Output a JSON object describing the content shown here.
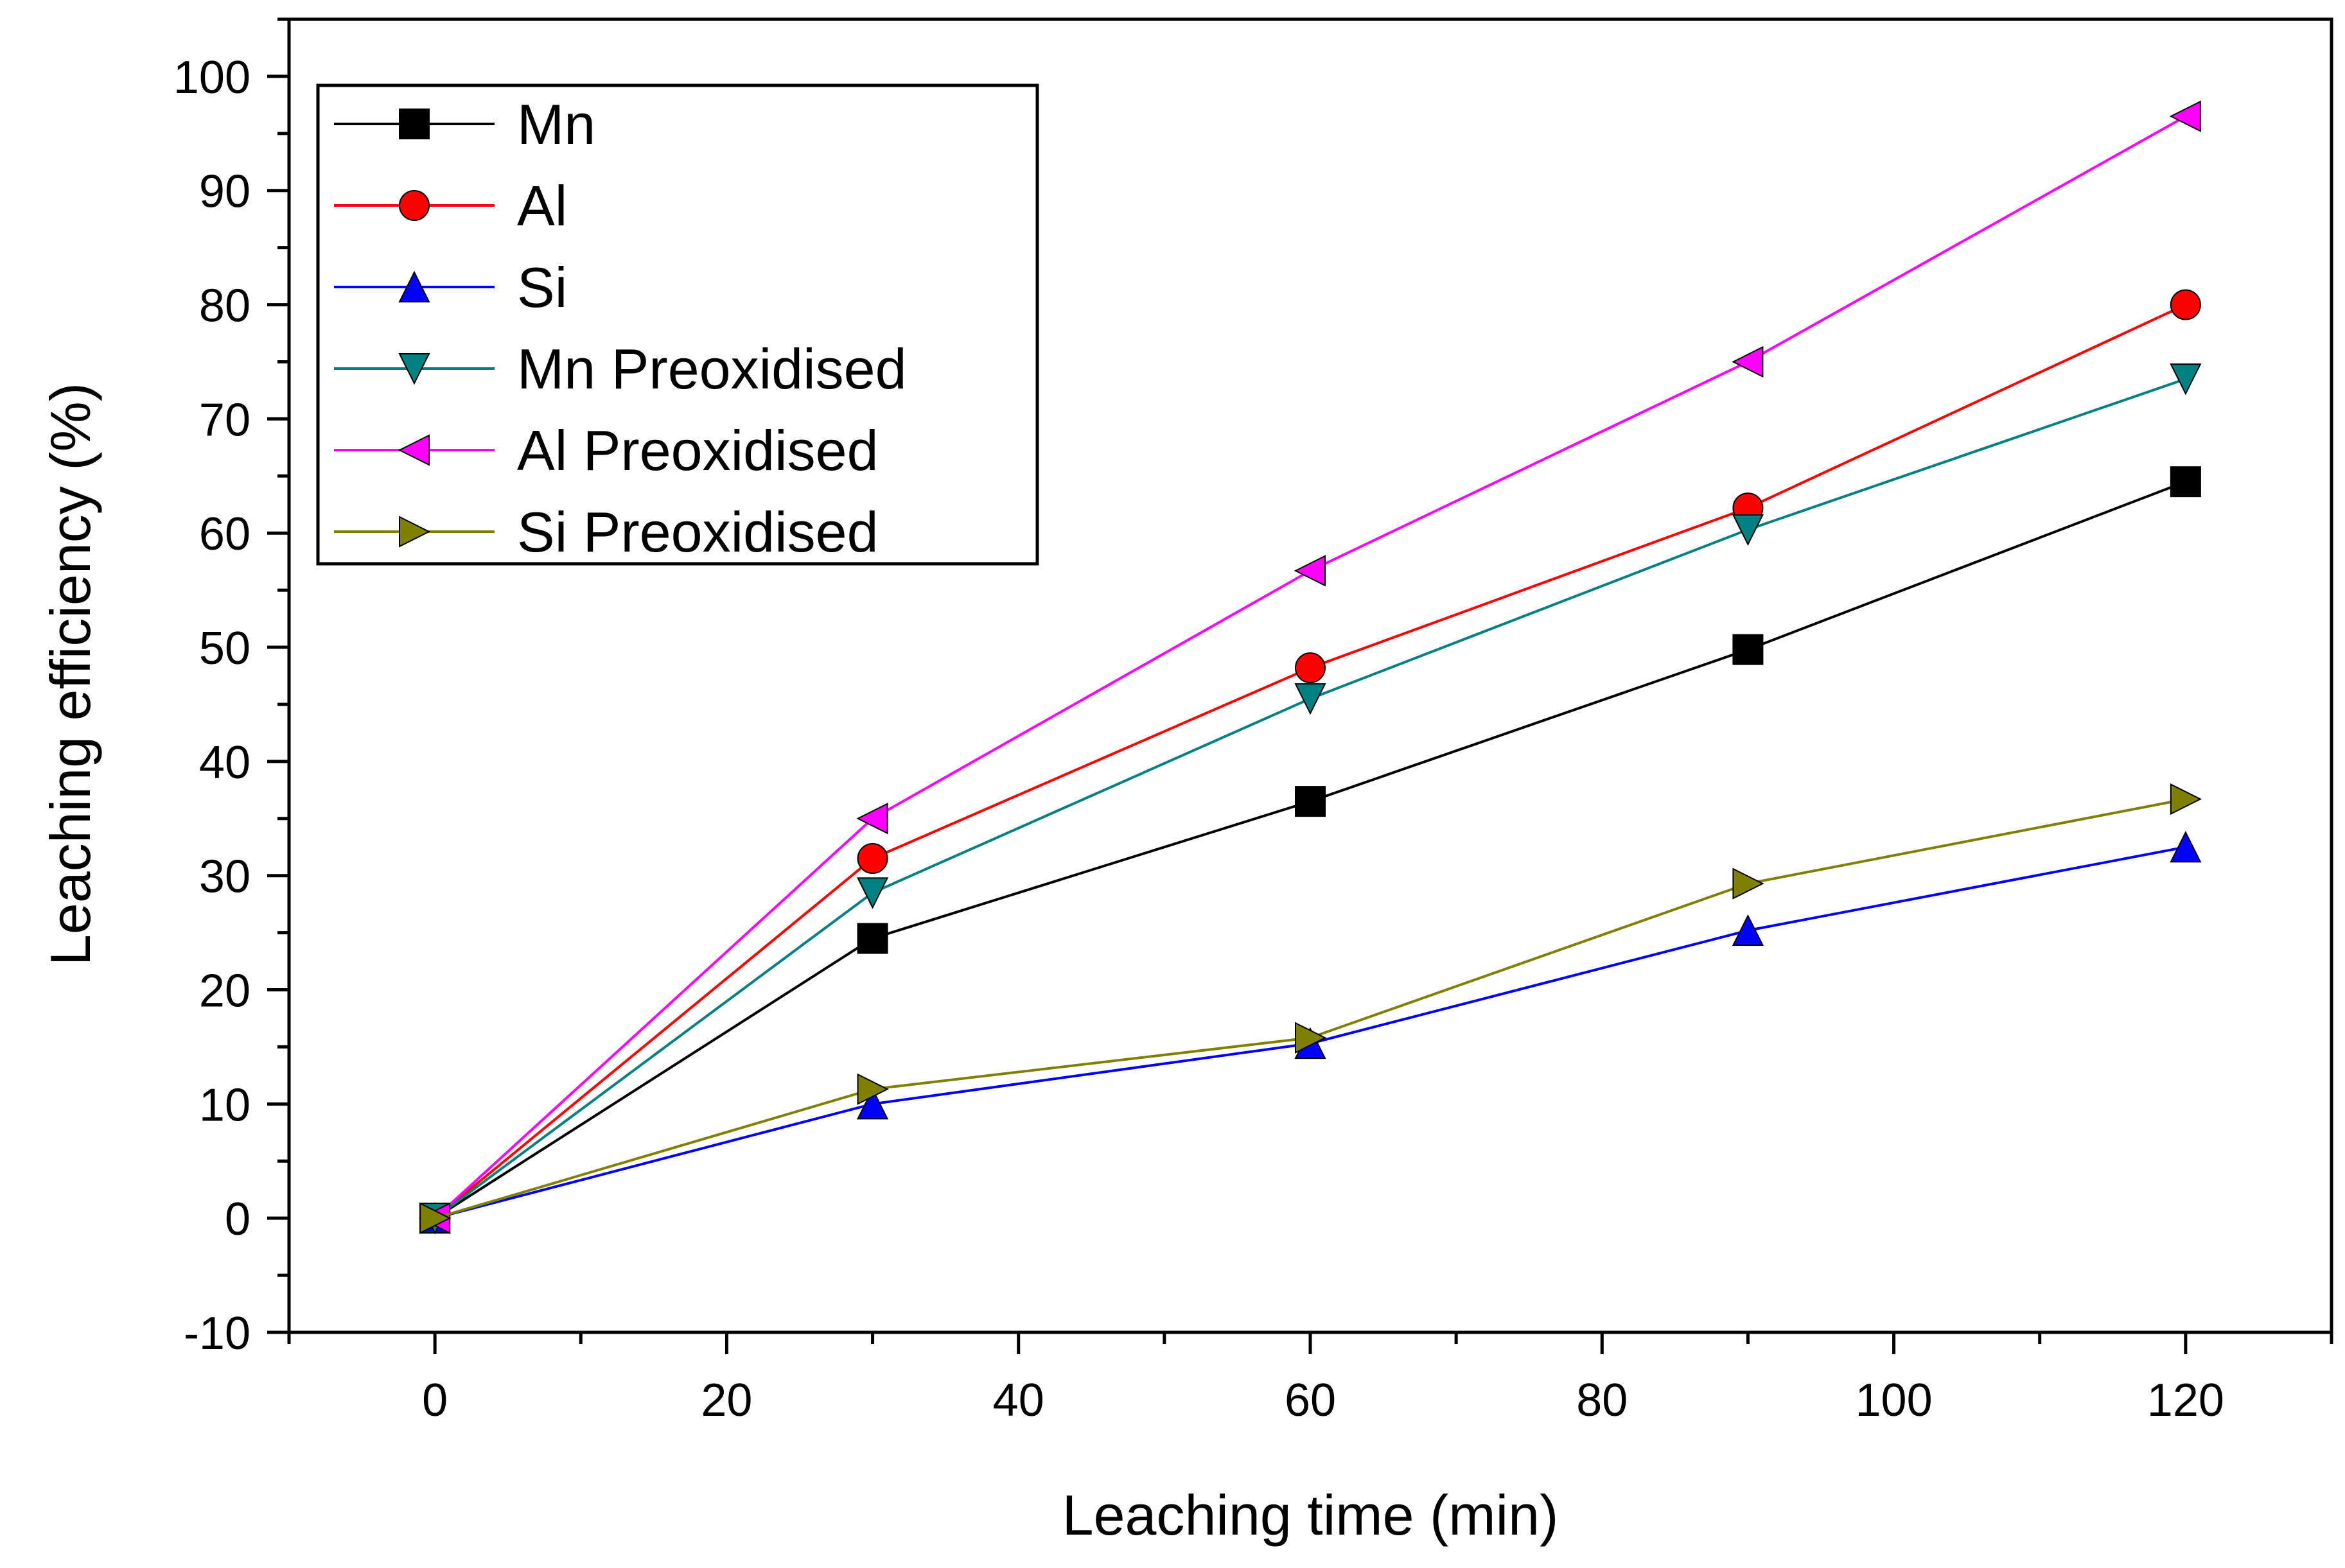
{
  "chart_data": {
    "type": "line",
    "title": "",
    "xlabel": "Leaching time (min)",
    "ylabel": "Leaching efficiency (%)",
    "xlim": [
      -10,
      130
    ],
    "ylim": [
      -10,
      105
    ],
    "xticks": [
      0,
      20,
      40,
      60,
      80,
      100,
      120
    ],
    "xtick_labels": [
      "0",
      "20",
      "40",
      "60",
      "80",
      "100",
      "120"
    ],
    "yticks": [
      -10,
      0,
      10,
      20,
      30,
      40,
      50,
      60,
      70,
      80,
      90,
      100
    ],
    "ytick_labels": [
      "-10",
      "0",
      "10",
      "20",
      "30",
      "40",
      "50",
      "60",
      "70",
      "80",
      "90",
      "100"
    ],
    "grid": false,
    "legend_position": "top-left",
    "x": [
      0,
      30,
      60,
      90,
      120
    ],
    "series": [
      {
        "name": "Mn",
        "values": [
          0,
          24.5,
          36.5,
          49.8,
          64.5
        ],
        "color": "#000000",
        "marker": "square"
      },
      {
        "name": "Al",
        "values": [
          0,
          31.5,
          48.2,
          62.2,
          80.0
        ],
        "color": "#ff0000",
        "marker": "circle"
      },
      {
        "name": "Si",
        "values": [
          0,
          10.0,
          15.3,
          25.2,
          32.5
        ],
        "color": "#0000ff",
        "marker": "triangle-up"
      },
      {
        "name": "Mn Preoxidised",
        "values": [
          0,
          28.5,
          45.5,
          60.3,
          73.5
        ],
        "color": "#008080",
        "marker": "triangle-down"
      },
      {
        "name": "Al Preoxidised",
        "values": [
          0,
          35.0,
          56.7,
          75.0,
          96.5
        ],
        "color": "#ff00ff",
        "marker": "triangle-left"
      },
      {
        "name": "Si Preoxidised",
        "values": [
          0,
          11.3,
          15.8,
          29.3,
          36.7
        ],
        "color": "#808000",
        "marker": "triangle-right"
      }
    ]
  }
}
